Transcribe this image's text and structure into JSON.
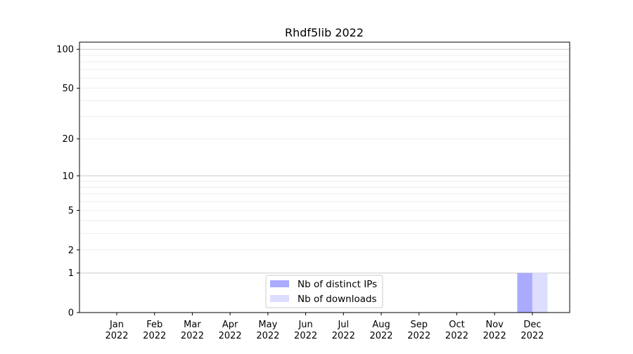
{
  "chart_data": {
    "type": "bar",
    "title": "Rhdf5lib 2022",
    "xlabel": "",
    "ylabel": "",
    "yscale": "log(1+y)",
    "ylim": [
      0,
      113
    ],
    "yticks": [
      0,
      1,
      2,
      5,
      10,
      20,
      50,
      100
    ],
    "grid": true,
    "legend_position": "bottom-center",
    "categories": [
      "Jan\n2022",
      "Feb\n2022",
      "Mar\n2022",
      "Apr\n2022",
      "May\n2022",
      "Jun\n2022",
      "Jul\n2022",
      "Aug\n2022",
      "Sep\n2022",
      "Oct\n2022",
      "Nov\n2022",
      "Dec\n2022"
    ],
    "series": [
      {
        "name": "Nb of distinct IPs",
        "color": "#aaaaff",
        "values": [
          0,
          0,
          0,
          0,
          0,
          0,
          0,
          0,
          0,
          0,
          0,
          1
        ]
      },
      {
        "name": "Nb of downloads",
        "color": "#ddddff",
        "values": [
          0,
          0,
          0,
          0,
          0,
          0,
          0,
          0,
          0,
          0,
          0,
          1
        ]
      }
    ]
  }
}
